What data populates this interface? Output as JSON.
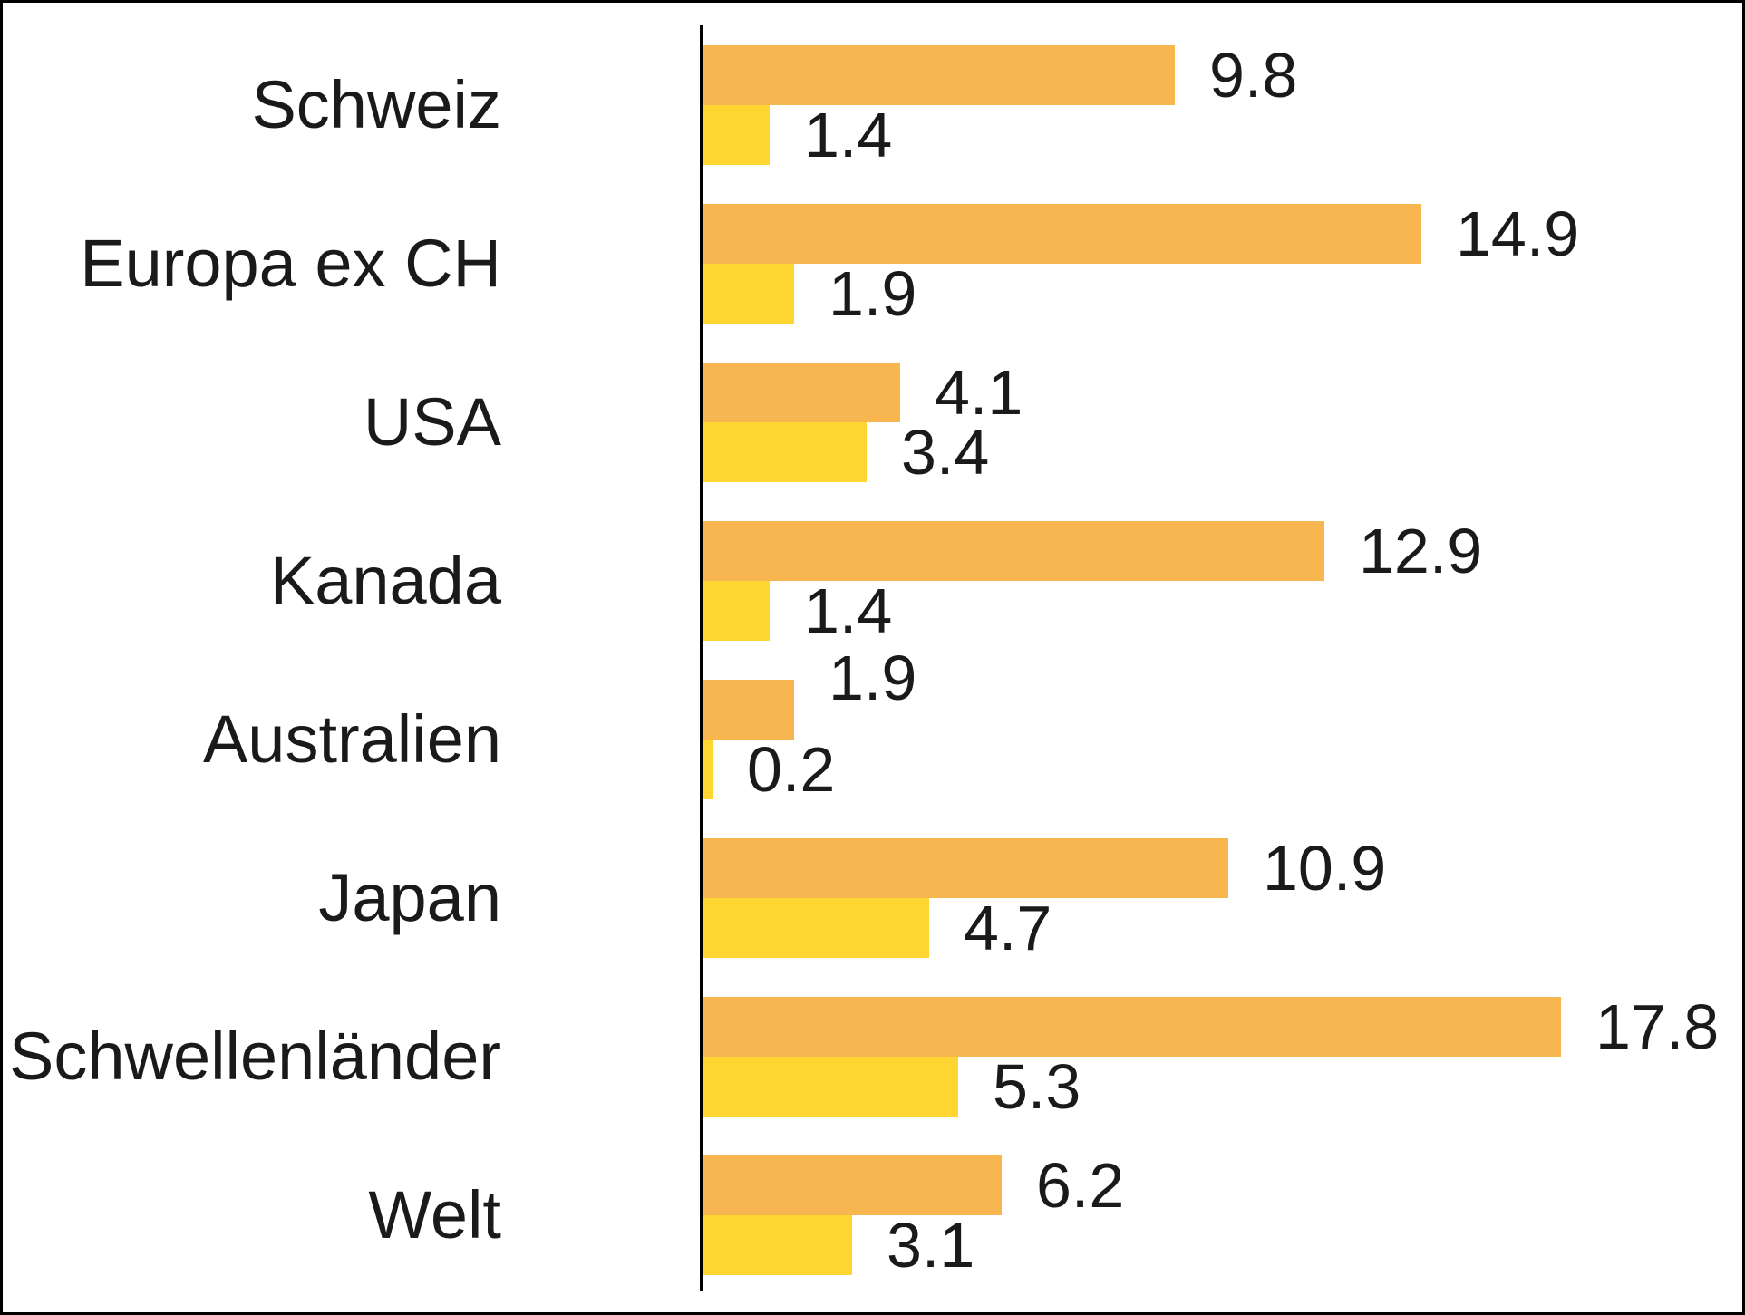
{
  "chart": {
    "background_color": "#FFFFFF",
    "border_color": "#000000",
    "axis_color": "#000000",
    "text_color": "#1A1A1A"
  },
  "chart_data": {
    "type": "bar",
    "orientation": "horizontal",
    "title": "",
    "xlabel": "",
    "ylabel": "",
    "categories": [
      "Schweiz",
      "Europa ex CH",
      "USA",
      "Kanada",
      "Australien",
      "Japan",
      "Schwellenländer",
      "Welt"
    ],
    "series": [
      {
        "name": "series-orange",
        "color": "#F7B64F",
        "values": [
          9.8,
          14.9,
          4.1,
          12.9,
          1.9,
          10.9,
          17.8,
          6.2
        ],
        "value_labels": [
          "9.8",
          "14.9",
          "4.1",
          "12.9",
          "1.9",
          "10.9",
          "17.8",
          "6.2"
        ]
      },
      {
        "name": "series-yellow",
        "color": "#FFD631",
        "values": [
          1.4,
          1.9,
          3.4,
          1.4,
          0.2,
          4.7,
          5.3,
          3.1
        ],
        "value_labels": [
          "1.4",
          "1.9",
          "3.4",
          "1.4",
          "0.2",
          "4.7",
          "5.3",
          "3.1"
        ]
      }
    ],
    "xlim": [
      0,
      20
    ],
    "grid": false,
    "legend": "none",
    "value_label_position": "outside-end",
    "label_dy_overrides": [
      {
        "category_index": 4,
        "series_index": 0,
        "dy": -35
      }
    ]
  }
}
